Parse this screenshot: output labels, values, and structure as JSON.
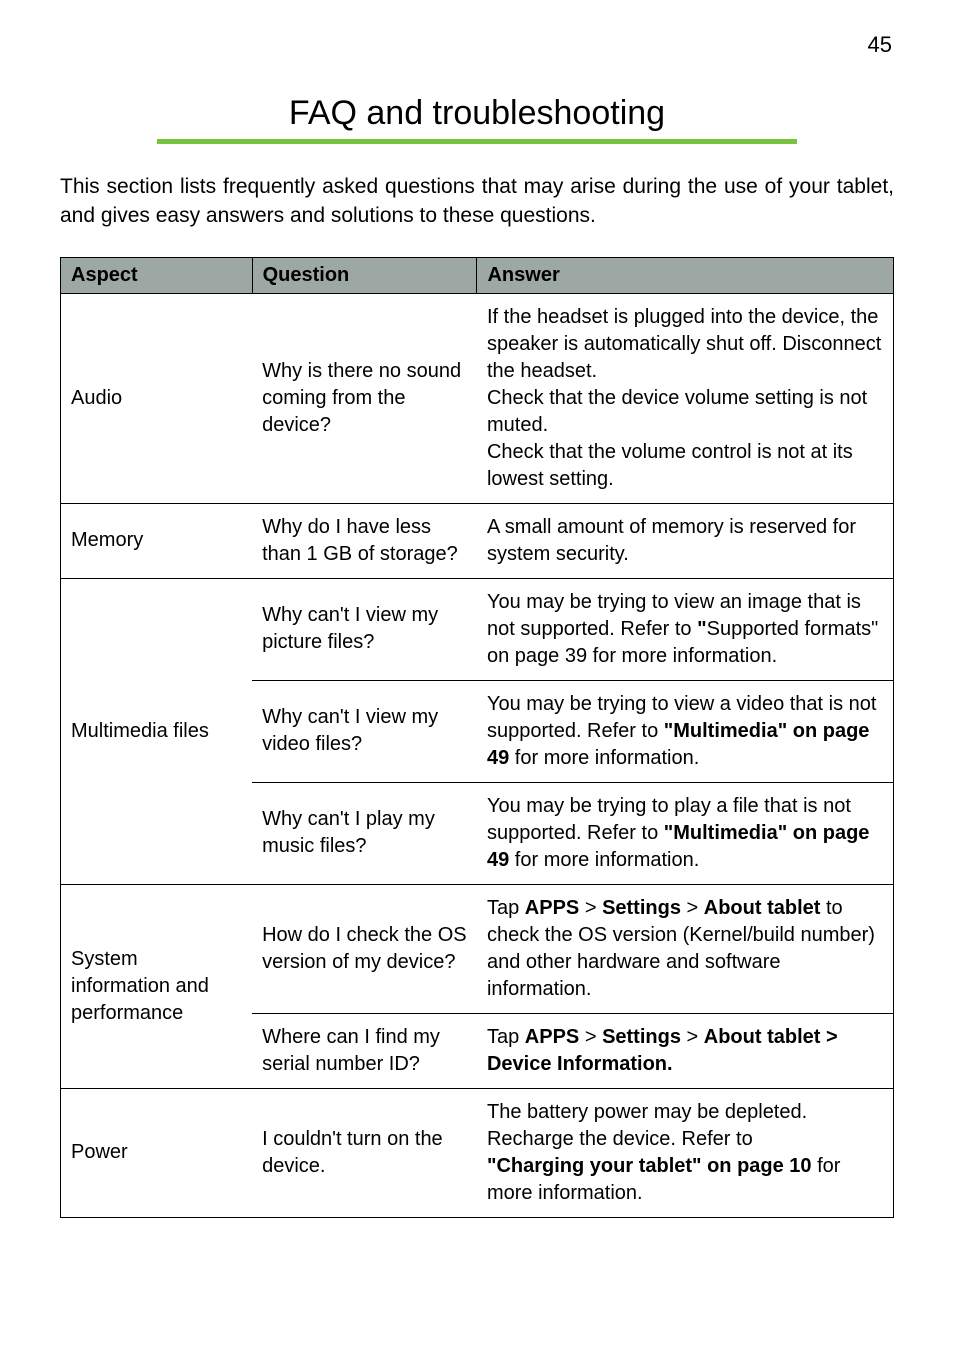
{
  "page_number": "45",
  "title": "FAQ and troubleshooting",
  "underline_color": "#78c43f",
  "header_bg_color": "#9da7a4",
  "border_color": "#000000",
  "text_color": "#000000",
  "intro": "This section lists frequently asked questions that may arise during the use of your tablet, and gives easy answers and solutions to these questions.",
  "columns": {
    "aspect": "Aspect",
    "question": "Question",
    "answer": "Answer"
  },
  "rows": [
    {
      "aspect": "Audio",
      "question": "Why is there no sound coming from the device?",
      "answer_parts": [
        {
          "t": "If the headset is plugged into the device, the speaker is automatically shut off. Disconnect the headset."
        },
        {
          "br": true
        },
        {
          "t": "Check that the device volume setting is not muted."
        },
        {
          "br": true
        },
        {
          "t": "Check that the volume control is not at its lowest setting."
        }
      ]
    },
    {
      "aspect": "Memory",
      "question": "Why do I have less than 1 GB of storage?",
      "answer_parts": [
        {
          "t": "A small amount of memory is reserved for system security."
        }
      ]
    },
    {
      "group_start": true,
      "aspect": "Multimedia files",
      "aspect_rowspan": 3,
      "question": "Why can't I view my picture files?",
      "answer_parts": [
        {
          "t": "You may be trying to view an image that is not supported. Refer to "
        },
        {
          "t": "\"",
          "b": true
        },
        {
          "t": "Supported formats\" on page 39 for more information."
        }
      ]
    },
    {
      "question": "Why can't I view my video files?",
      "answer_parts": [
        {
          "t": "You may be trying to view a video that is not supported. Refer to "
        },
        {
          "t": "\"Multimedia\" on page 49",
          "b": true
        },
        {
          "t": " for more information."
        }
      ]
    },
    {
      "question": "Why can't I play my music files?",
      "answer_parts": [
        {
          "t": "You may be trying to play a file that is not supported. Refer to "
        },
        {
          "t": "\"Multimedia\" on page 49",
          "b": true
        },
        {
          "t": " for more information."
        }
      ]
    },
    {
      "group_start": true,
      "aspect": "System information and performance",
      "aspect_rowspan": 2,
      "question": "How do I check the OS version of my device?",
      "answer_parts": [
        {
          "t": "Tap "
        },
        {
          "t": "APPS",
          "b": true
        },
        {
          "t": " > "
        },
        {
          "t": "Settings",
          "b": true
        },
        {
          "t": " > "
        },
        {
          "t": "About tablet",
          "b": true
        },
        {
          "t": " to check the OS version (Kernel/build number) and other hardware and software information."
        }
      ]
    },
    {
      "question": "Where can I find my serial number ID?",
      "answer_parts": [
        {
          "t": "Tap "
        },
        {
          "t": "APPS",
          "b": true
        },
        {
          "t": " > "
        },
        {
          "t": "Settings",
          "b": true
        },
        {
          "t": " > "
        },
        {
          "t": "About tablet > Device Information.",
          "b": true
        }
      ]
    },
    {
      "aspect": "Power",
      "question": "I couldn't turn on the device.",
      "answer_parts": [
        {
          "t": "The battery power may be depleted. Recharge the device. Refer to "
        },
        {
          "br": true
        },
        {
          "t": "\"Charging your tablet\" on page 10",
          "b": true
        },
        {
          "t": " for more information."
        }
      ]
    }
  ]
}
